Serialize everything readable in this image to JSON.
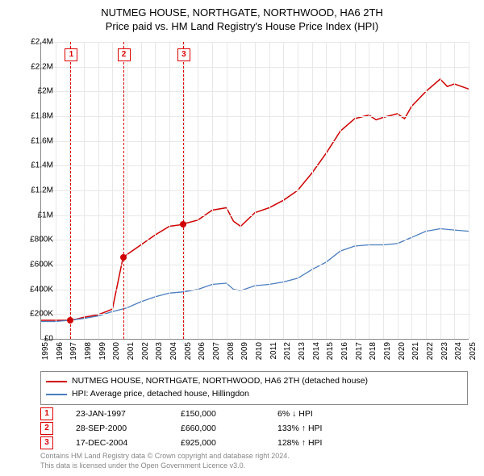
{
  "title": {
    "line1": "NUTMEG HOUSE, NORTHGATE, NORTHWOOD, HA6 2TH",
    "line2": "Price paid vs. HM Land Registry's House Price Index (HPI)",
    "fontsize": 13,
    "color": "#000000"
  },
  "chart": {
    "type": "line",
    "background_color": "#ffffff",
    "grid_color": "#e8e8e8",
    "axis_color": "#888888",
    "xlim": [
      1995,
      2025
    ],
    "ylim": [
      0,
      2400000
    ],
    "ytick_step": 200000,
    "yticks": [
      "£0",
      "£200K",
      "£400K",
      "£600K",
      "£800K",
      "£1M",
      "£1.2M",
      "£1.4M",
      "£1.6M",
      "£1.8M",
      "£2M",
      "£2.2M",
      "£2.4M"
    ],
    "xticks": [
      1995,
      1996,
      1997,
      1998,
      1999,
      2000,
      2001,
      2002,
      2003,
      2004,
      2005,
      2006,
      2007,
      2008,
      2009,
      2010,
      2011,
      2012,
      2013,
      2014,
      2015,
      2016,
      2017,
      2018,
      2019,
      2020,
      2021,
      2022,
      2023,
      2024,
      2025
    ],
    "label_fontsize": 10,
    "series": [
      {
        "name": "property",
        "label": "NUTMEG HOUSE, NORTHGATE, NORTHWOOD, HA6 2TH (detached house)",
        "color": "#d00000",
        "line_width": 1.5,
        "data": [
          [
            1995,
            150000
          ],
          [
            1996,
            150000
          ],
          [
            1997,
            150000
          ],
          [
            1997.5,
            160000
          ],
          [
            1998,
            175000
          ],
          [
            1999,
            195000
          ],
          [
            2000,
            240000
          ],
          [
            2000.75,
            660000
          ],
          [
            2001,
            680000
          ],
          [
            2002,
            760000
          ],
          [
            2003,
            840000
          ],
          [
            2004,
            910000
          ],
          [
            2004.96,
            925000
          ],
          [
            2005,
            930000
          ],
          [
            2006,
            960000
          ],
          [
            2007,
            1040000
          ],
          [
            2008,
            1060000
          ],
          [
            2008.5,
            950000
          ],
          [
            2009,
            910000
          ],
          [
            2010,
            1020000
          ],
          [
            2011,
            1060000
          ],
          [
            2012,
            1120000
          ],
          [
            2013,
            1200000
          ],
          [
            2014,
            1340000
          ],
          [
            2015,
            1500000
          ],
          [
            2016,
            1680000
          ],
          [
            2017,
            1780000
          ],
          [
            2018,
            1810000
          ],
          [
            2018.5,
            1770000
          ],
          [
            2019,
            1790000
          ],
          [
            2020,
            1820000
          ],
          [
            2020.5,
            1780000
          ],
          [
            2021,
            1880000
          ],
          [
            2022,
            2000000
          ],
          [
            2023,
            2100000
          ],
          [
            2023.5,
            2040000
          ],
          [
            2024,
            2060000
          ],
          [
            2025,
            2020000
          ]
        ]
      },
      {
        "name": "hpi",
        "label": "HPI: Average price, detached house, Hillingdon",
        "color": "#4a7dc0",
        "line_width": 1.3,
        "data": [
          [
            1995,
            140000
          ],
          [
            1996,
            140000
          ],
          [
            1997,
            150000
          ],
          [
            1998,
            165000
          ],
          [
            1999,
            185000
          ],
          [
            2000,
            220000
          ],
          [
            2001,
            250000
          ],
          [
            2002,
            300000
          ],
          [
            2003,
            340000
          ],
          [
            2004,
            370000
          ],
          [
            2005,
            380000
          ],
          [
            2006,
            400000
          ],
          [
            2007,
            440000
          ],
          [
            2008,
            450000
          ],
          [
            2008.5,
            400000
          ],
          [
            2009,
            390000
          ],
          [
            2010,
            430000
          ],
          [
            2011,
            440000
          ],
          [
            2012,
            460000
          ],
          [
            2013,
            490000
          ],
          [
            2014,
            560000
          ],
          [
            2015,
            620000
          ],
          [
            2016,
            710000
          ],
          [
            2017,
            750000
          ],
          [
            2018,
            760000
          ],
          [
            2019,
            760000
          ],
          [
            2020,
            770000
          ],
          [
            2021,
            820000
          ],
          [
            2022,
            870000
          ],
          [
            2023,
            890000
          ],
          [
            2024,
            880000
          ],
          [
            2025,
            870000
          ]
        ]
      }
    ],
    "event_lines": {
      "color": "#d00000",
      "dash": "4,3",
      "positions": [
        1997.06,
        2000.75,
        2004.96
      ]
    },
    "event_badges": [
      {
        "num": "1",
        "x": 1997.06
      },
      {
        "num": "2",
        "x": 2000.75
      },
      {
        "num": "3",
        "x": 2004.96
      }
    ],
    "markers": {
      "color": "#d00000",
      "size": 8,
      "points": [
        {
          "x": 1997.06,
          "y": 150000
        },
        {
          "x": 2000.75,
          "y": 660000
        },
        {
          "x": 2004.96,
          "y": 925000
        }
      ]
    }
  },
  "legend": {
    "border_color": "#888888",
    "fontsize": 10.5,
    "items": [
      {
        "color": "#d00000",
        "label": "NUTMEG HOUSE, NORTHGATE, NORTHWOOD, HA6 2TH (detached house)"
      },
      {
        "color": "#4a7dc0",
        "label": "HPI: Average price, detached house, Hillingdon"
      }
    ]
  },
  "events_table": {
    "fontsize": 10.5,
    "badge_color": "#d00000",
    "rows": [
      {
        "num": "1",
        "date": "23-JAN-1997",
        "price": "£150,000",
        "pct": "6% ↓ HPI"
      },
      {
        "num": "2",
        "date": "28-SEP-2000",
        "price": "£660,000",
        "pct": "133% ↑ HPI"
      },
      {
        "num": "3",
        "date": "17-DEC-2004",
        "price": "£925,000",
        "pct": "128% ↑ HPI"
      }
    ]
  },
  "footer": {
    "line1": "Contains HM Land Registry data © Crown copyright and database right 2024.",
    "line2": "This data is licensed under the Open Government Licence v3.0.",
    "color": "#888888",
    "fontsize": 9
  }
}
